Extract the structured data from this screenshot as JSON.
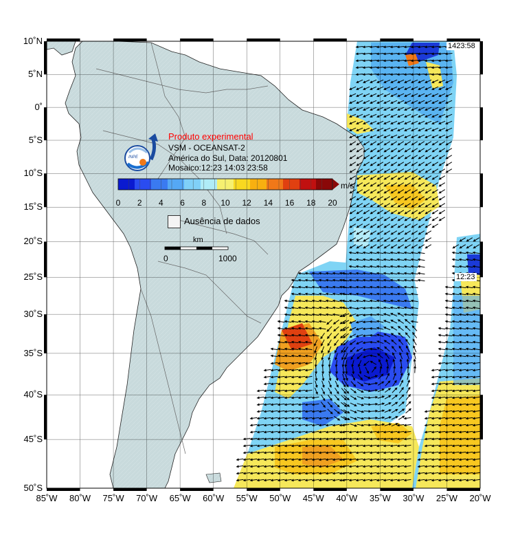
{
  "map": {
    "latitude_labels": [
      "10˚N",
      "5˚N",
      "0˚",
      "5˚S",
      "10˚S",
      "15˚S",
      "20˚S",
      "25˚S",
      "30˚S",
      "35˚S",
      "40˚S",
      "45˚S",
      "50˚S"
    ],
    "longitude_labels": [
      "85˚W",
      "80˚W",
      "75˚W",
      "70˚W",
      "65˚W",
      "60˚W",
      "55˚W",
      "50˚W",
      "45˚W",
      "40˚W",
      "35˚W",
      "30˚W",
      "25˚W",
      "20˚W"
    ]
  },
  "info": {
    "title": "Produto experimental",
    "line1": "VSM - OCEANSAT-2",
    "line2": "América do Sul, Data: 20120801",
    "line3": "Mosaico:12:23 14:03 23:58",
    "logo_text": "INPE"
  },
  "colorbar": {
    "ticks": [
      "0",
      "2",
      "4",
      "6",
      "8",
      "10",
      "12",
      "14",
      "16",
      "18",
      "20"
    ],
    "unit": "m/s",
    "colors": [
      "#0a1ad0",
      "#2a4cf0",
      "#3a7af0",
      "#55a8f5",
      "#80d0f8",
      "#b0ecf8",
      "#f6f070",
      "#f8d820",
      "#f8b010",
      "#f07818",
      "#e04010",
      "#c01010",
      "#8a0808"
    ]
  },
  "legend": {
    "no_data_label": "Ausência de dados",
    "scale_unit": "km",
    "scale_start": "0",
    "scale_end": "1000"
  },
  "pass_times": {
    "top_right": "1423:58",
    "mid_right": "12:23"
  },
  "colors": {
    "land": "#c8dadc",
    "ocean": "#ffffff",
    "grid": "#000000",
    "coast": "#222222"
  }
}
